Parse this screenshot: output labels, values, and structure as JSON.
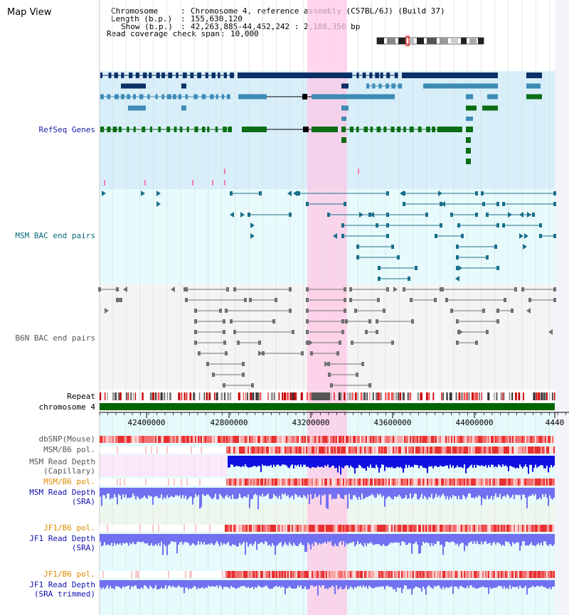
{
  "window": {
    "title": "Map View"
  },
  "info": {
    "chromosome_key": "Chromosome",
    "chromosome_value": "Chromosome 4, reference assembly (C57BL/6J) (Build 37)",
    "length_key": "Length (b.p.)",
    "length_value": "155,630,120",
    "show_key": "Show (b.p.)",
    "show_value": "42,263,885-44,452,242 : 2,188,358 bp",
    "coverage_key": "Read coverage check span",
    "coverage_value": "10,000"
  },
  "tracks": {
    "refseq": "RefSeq Genes",
    "msm_bac": "MSM BAC end pairs",
    "b6n_bac": "B6N BAC end pairs",
    "repeat": "Repeat",
    "chromosome": "chromosome 4",
    "dbsnp": "dbSNP(Mouse)",
    "msm_b6_pol_1": "MSM/B6 pol.",
    "msm_depth_cap_1": "MSM Read Depth",
    "msm_depth_cap_2": "(Capillary)",
    "msm_b6_pol_2": "MSM/B6 pol.",
    "msm_depth_sra_1": "MSM Read Depth",
    "msm_depth_sra_2": "(SRA)",
    "jf1_b6_pol_1": "JF1/B6 pol.",
    "jf1_depth_sra_1": "JF1 Read Depth",
    "jf1_depth_sra_2": "(SRA)",
    "jf1_b6_pol_2": "JF1/B6 pol.",
    "jf1_depth_trim_1": "JF1 Read Depth",
    "jf1_depth_trim_2": "(SRA trimmed)"
  },
  "ruler": {
    "ticks": [
      "42400000",
      "42800000",
      "43200000",
      "43600000",
      "44000000",
      "4440"
    ]
  },
  "colors": {
    "refseq_bg": "#d8effa",
    "msm_bg": "#e8fbfc",
    "b6n_bg": "#f4f4f4",
    "highlight": "#ffc8e6",
    "gene_navy": "#0b2f66",
    "gene_mid": "#3d8bb5",
    "gene_green": "#0a6e14",
    "msm_line": "#1b6f8c",
    "b6n_line": "#707070",
    "chrom_green": "#006400",
    "depth_blue": "#1010e0",
    "depth_light": "#7070f0"
  }
}
